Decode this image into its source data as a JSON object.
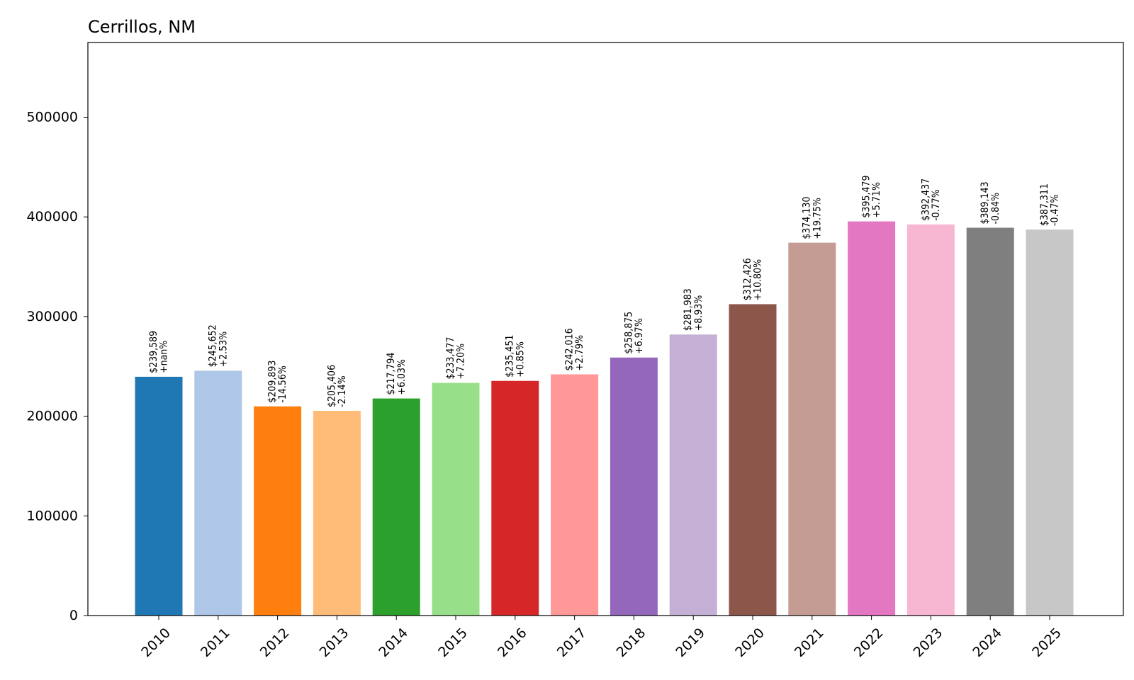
{
  "chart_data": {
    "type": "bar",
    "title": "Cerrillos, NM",
    "xlabel": "",
    "ylabel": "",
    "ylim": [
      0,
      575000
    ],
    "yticks": [
      0,
      100000,
      200000,
      300000,
      400000,
      500000
    ],
    "grid": false,
    "legend": "none",
    "categories": [
      "2010",
      "2011",
      "2012",
      "2013",
      "2014",
      "2015",
      "2016",
      "2017",
      "2018",
      "2019",
      "2020",
      "2021",
      "2022",
      "2023",
      "2024",
      "2025"
    ],
    "values": [
      239589,
      245652,
      209893,
      205406,
      217794,
      233477,
      235451,
      242016,
      258875,
      281983,
      312426,
      374130,
      395479,
      392437,
      389143,
      387311
    ],
    "value_labels": [
      "$239,589",
      "$245,652",
      "$209,893",
      "$205,406",
      "$217,794",
      "$233,477",
      "$235,451",
      "$242,016",
      "$258,875",
      "$281,983",
      "$312,426",
      "$374,130",
      "$395,479",
      "$392,437",
      "$389,143",
      "$387,311"
    ],
    "change_labels": [
      "+nan%",
      "+2.53%",
      "-14.56%",
      "-2.14%",
      "+6.03%",
      "+7.20%",
      "+0.85%",
      "+2.79%",
      "+6.97%",
      "+8.93%",
      "+10.80%",
      "+19.75%",
      "+5.71%",
      "-0.77%",
      "-0.84%",
      "-0.47%"
    ],
    "colors": [
      "#1f77b4",
      "#aec7e8",
      "#ff7f0e",
      "#ffbb78",
      "#2ca02c",
      "#98df8a",
      "#d62728",
      "#ff9896",
      "#9467bd",
      "#c5b0d5",
      "#8c564b",
      "#c49c94",
      "#e377c2",
      "#f7b6d2",
      "#7f7f7f",
      "#c7c7c7"
    ]
  }
}
